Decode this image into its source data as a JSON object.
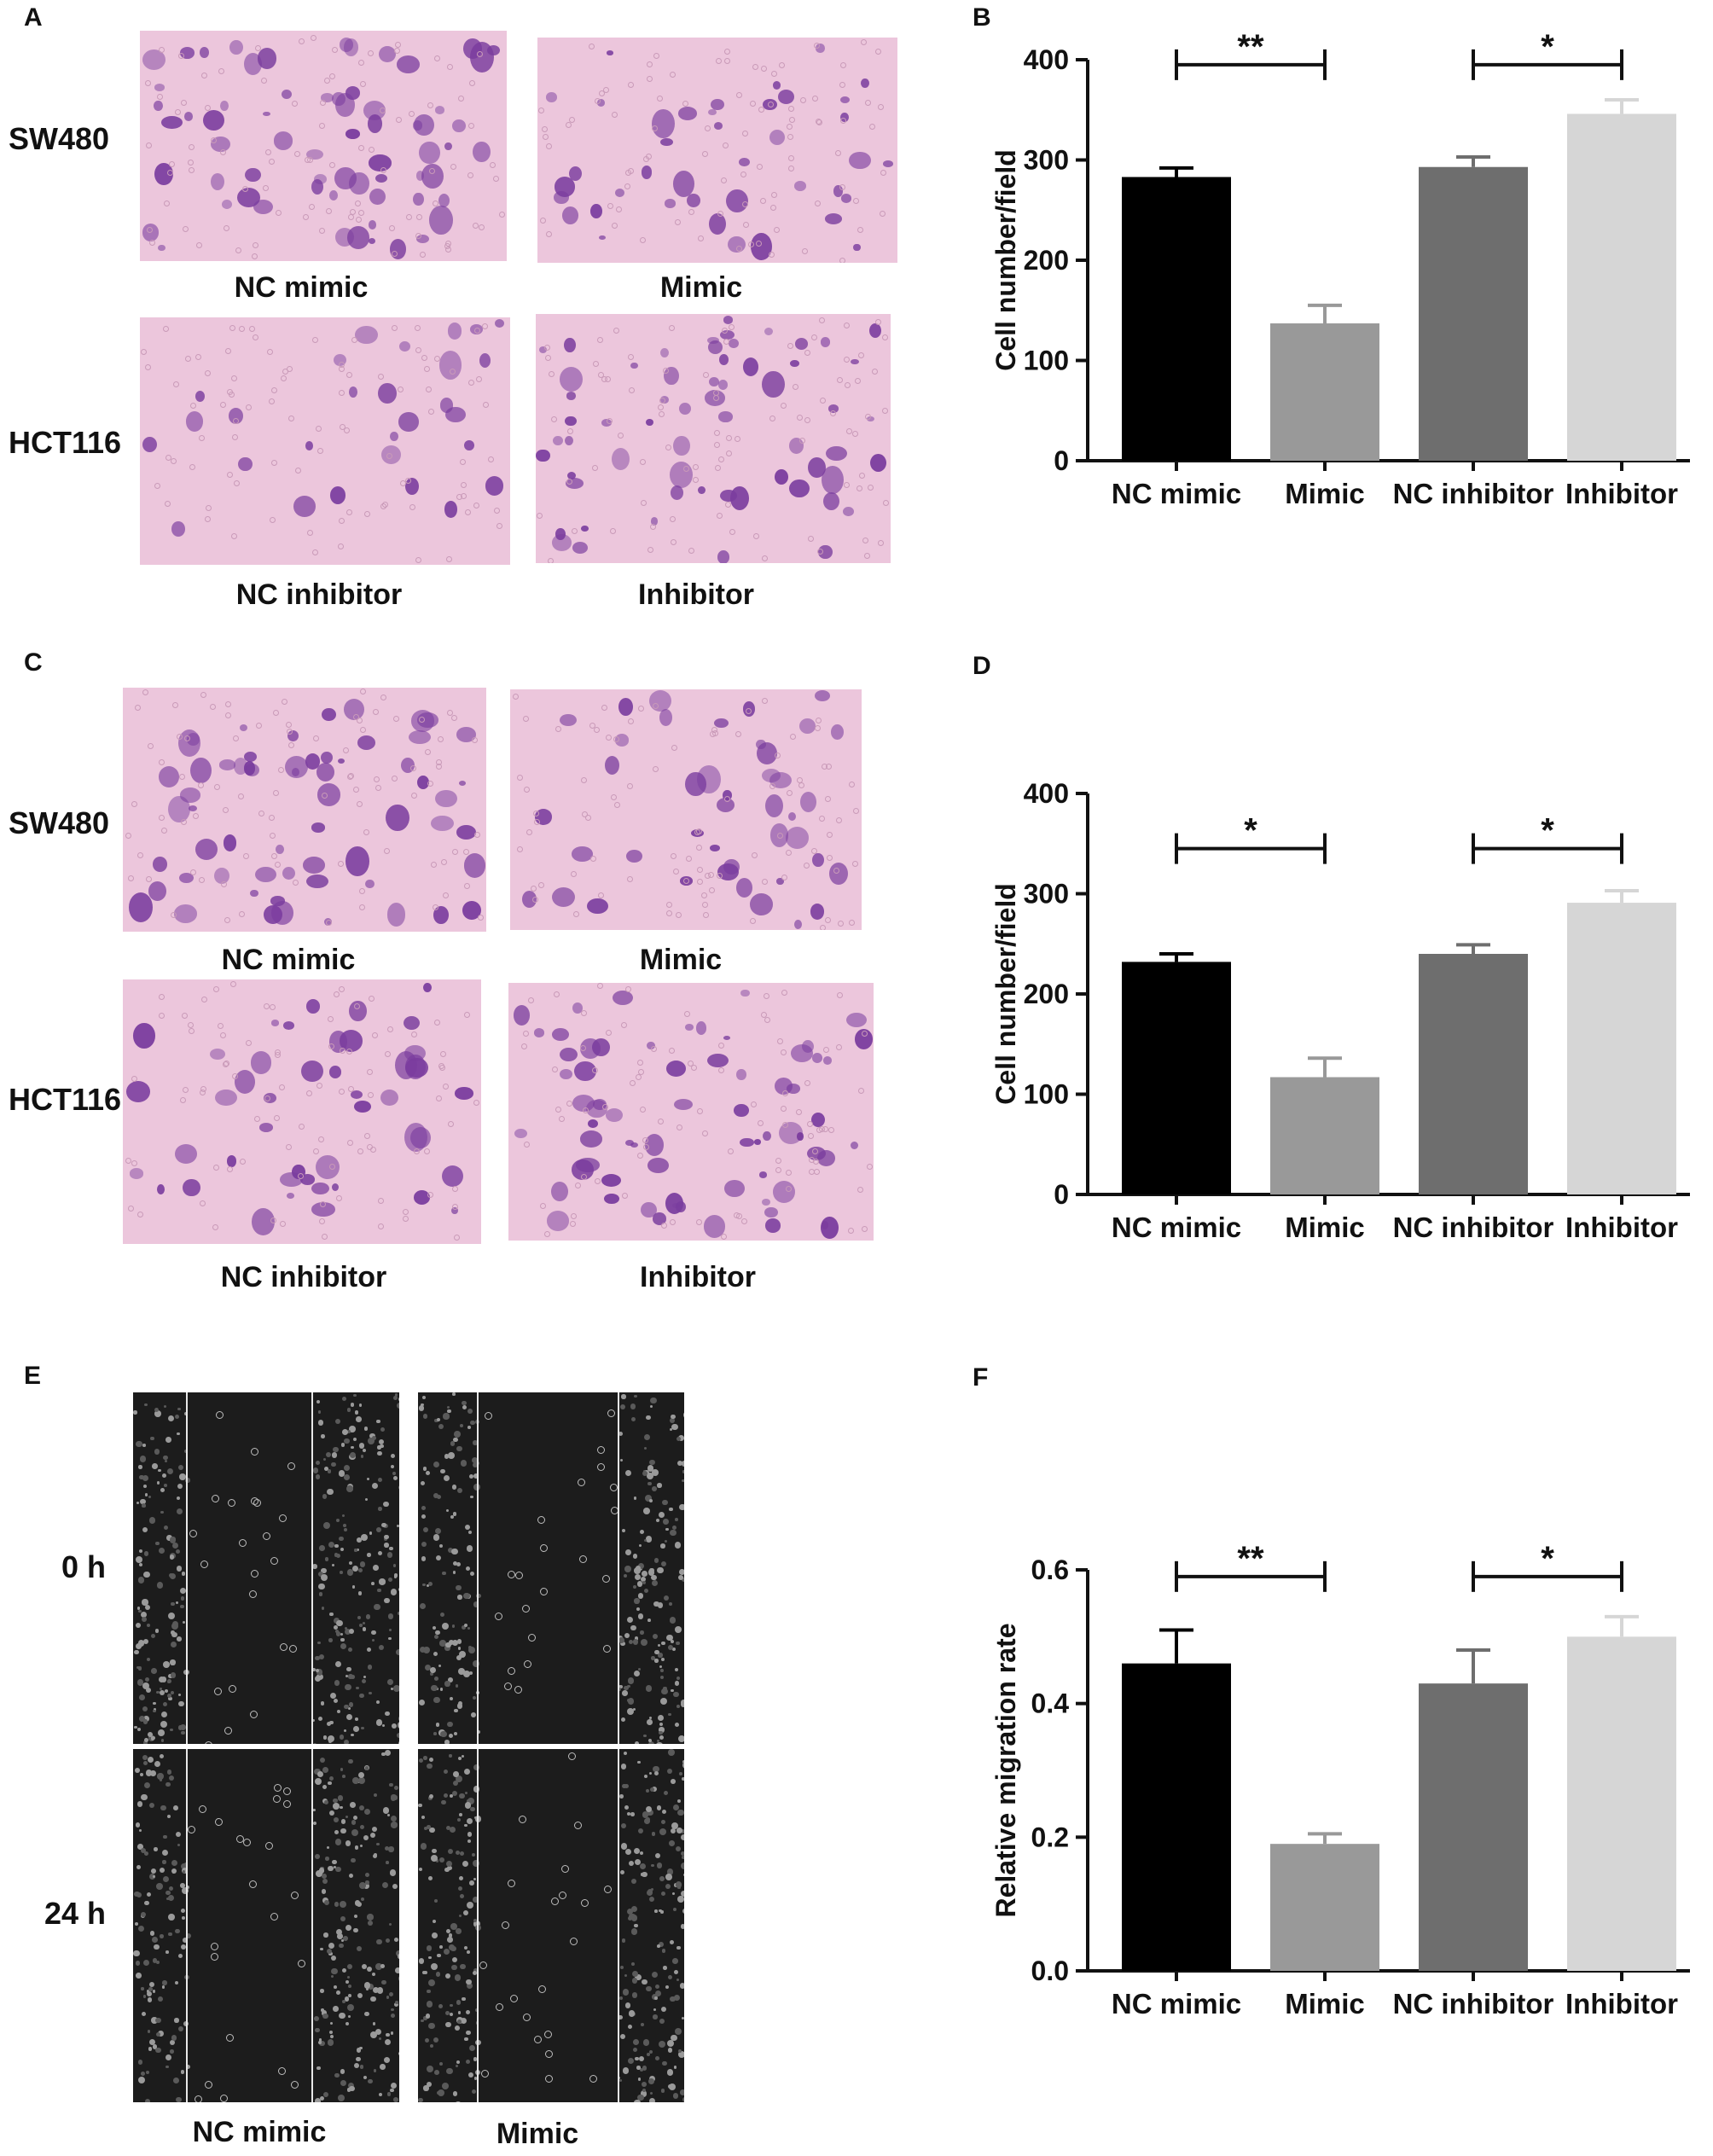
{
  "panels": {
    "A": {
      "letter": "A",
      "row_labels": [
        "SW480",
        "HCT116"
      ],
      "captions": [
        "NC mimic",
        "Mimic",
        "NC inhibitor",
        "Inhibitor"
      ]
    },
    "C": {
      "letter": "C",
      "row_labels": [
        "SW480",
        "HCT116"
      ],
      "captions": [
        "NC mimic",
        "Mimic",
        "NC inhibitor",
        "Inhibitor"
      ]
    },
    "E": {
      "letter": "E",
      "row_labels": [
        "0 h",
        "24 h"
      ],
      "captions": [
        "NC mimic",
        "Mimic"
      ]
    }
  },
  "colors": {
    "nc_mimic": "#000000",
    "mimic": "#999999",
    "nc_inhibitor": "#6e6e6e",
    "inhibitor": "#d6d6d6",
    "stain_background": "#ecc6dc",
    "stain_cells": "#7a3c9e",
    "phase_contrast": "#1c1c1c"
  },
  "chart_data": [
    {
      "panel": "B",
      "type": "bar",
      "categories": [
        "NC mimic",
        "Mimic",
        "NC inhibitor",
        "Inhibitor"
      ],
      "values": [
        283,
        137,
        293,
        346
      ],
      "errors": [
        9,
        18,
        10,
        14
      ],
      "ylabel": "Cell number/field",
      "ylim": [
        0,
        400
      ],
      "yticks": [
        "0",
        "100",
        "200",
        "300",
        "400"
      ],
      "significance": [
        {
          "between": [
            0,
            1
          ],
          "label": "**",
          "y": 395
        },
        {
          "between": [
            2,
            3
          ],
          "label": "*",
          "y": 395
        }
      ]
    },
    {
      "panel": "D",
      "type": "bar",
      "categories": [
        "NC mimic",
        "Mimic",
        "NC inhibitor",
        "Inhibitor"
      ],
      "values": [
        232,
        117,
        240,
        291
      ],
      "errors": [
        8,
        19,
        9,
        12
      ],
      "ylabel": "Cell number/field",
      "ylim": [
        0,
        400
      ],
      "yticks": [
        "0",
        "100",
        "200",
        "300",
        "400"
      ],
      "significance": [
        {
          "between": [
            0,
            1
          ],
          "label": "*",
          "y": 345
        },
        {
          "between": [
            2,
            3
          ],
          "label": "*",
          "y": 345
        }
      ]
    },
    {
      "panel": "F",
      "type": "bar",
      "categories": [
        "NC mimic",
        "Mimic",
        "NC inhibitor",
        "Inhibitor"
      ],
      "values": [
        0.46,
        0.19,
        0.43,
        0.5
      ],
      "errors": [
        0.05,
        0.015,
        0.05,
        0.03
      ],
      "ylabel": "Relative migration rate",
      "ylim": [
        0,
        0.6
      ],
      "yticks": [
        "0.0",
        "0.2",
        "0.4",
        "0.6"
      ],
      "significance": [
        {
          "between": [
            0,
            1
          ],
          "label": "**",
          "y": 0.59
        },
        {
          "between": [
            2,
            3
          ],
          "label": "*",
          "y": 0.59
        }
      ]
    }
  ]
}
